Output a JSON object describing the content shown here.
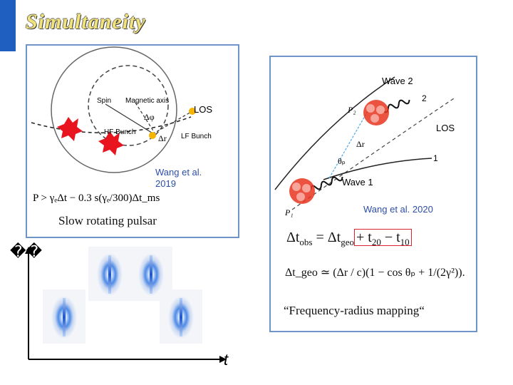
{
  "slide": {
    "title": "Simultaneity",
    "unrendered_glyph": "��",
    "time_axis_label": "t",
    "accent_color": "#1f5fbf"
  },
  "left_figure": {
    "labels": {
      "spin": "Spin",
      "magnetic_axis": "Magnetic axis",
      "los": "LOS",
      "delta_phi": "Δφ",
      "hf_bunch": "HF Bunch",
      "delta_r": "Δr",
      "lf_bunch": "LF Bunch"
    },
    "equation": "P > γₑΔt − 0.3 s(γₑ/300)Δt_ms",
    "citation": "Wang et al. 2019",
    "caption": "Slow rotating pulsar"
  },
  "right_figure": {
    "labels": {
      "wave2": "Wave 2",
      "wave1": "Wave 1",
      "p2": "P₂",
      "p1": "P₁",
      "los": "LOS",
      "delta_r": "Δr",
      "theta_p": "θₚ",
      "num2": "2",
      "num1": "1"
    },
    "citation": "Wang et al. 2020",
    "eq_obs_lhs": "Δt",
    "eq_obs_sub": "obs",
    "eq_obs_mid": " = Δt",
    "eq_obs_geo": "geo",
    "eq_obs_t20": "+ t",
    "eq_obs_20": "20",
    "eq_obs_t10": " − t",
    "eq_obs_10": "10",
    "eq_geo": "Δt_geo ≃ (Δr / c)(1 − cos θₚ + 1/(2γ²)).",
    "caption": "“Frequency-radius mapping“"
  }
}
